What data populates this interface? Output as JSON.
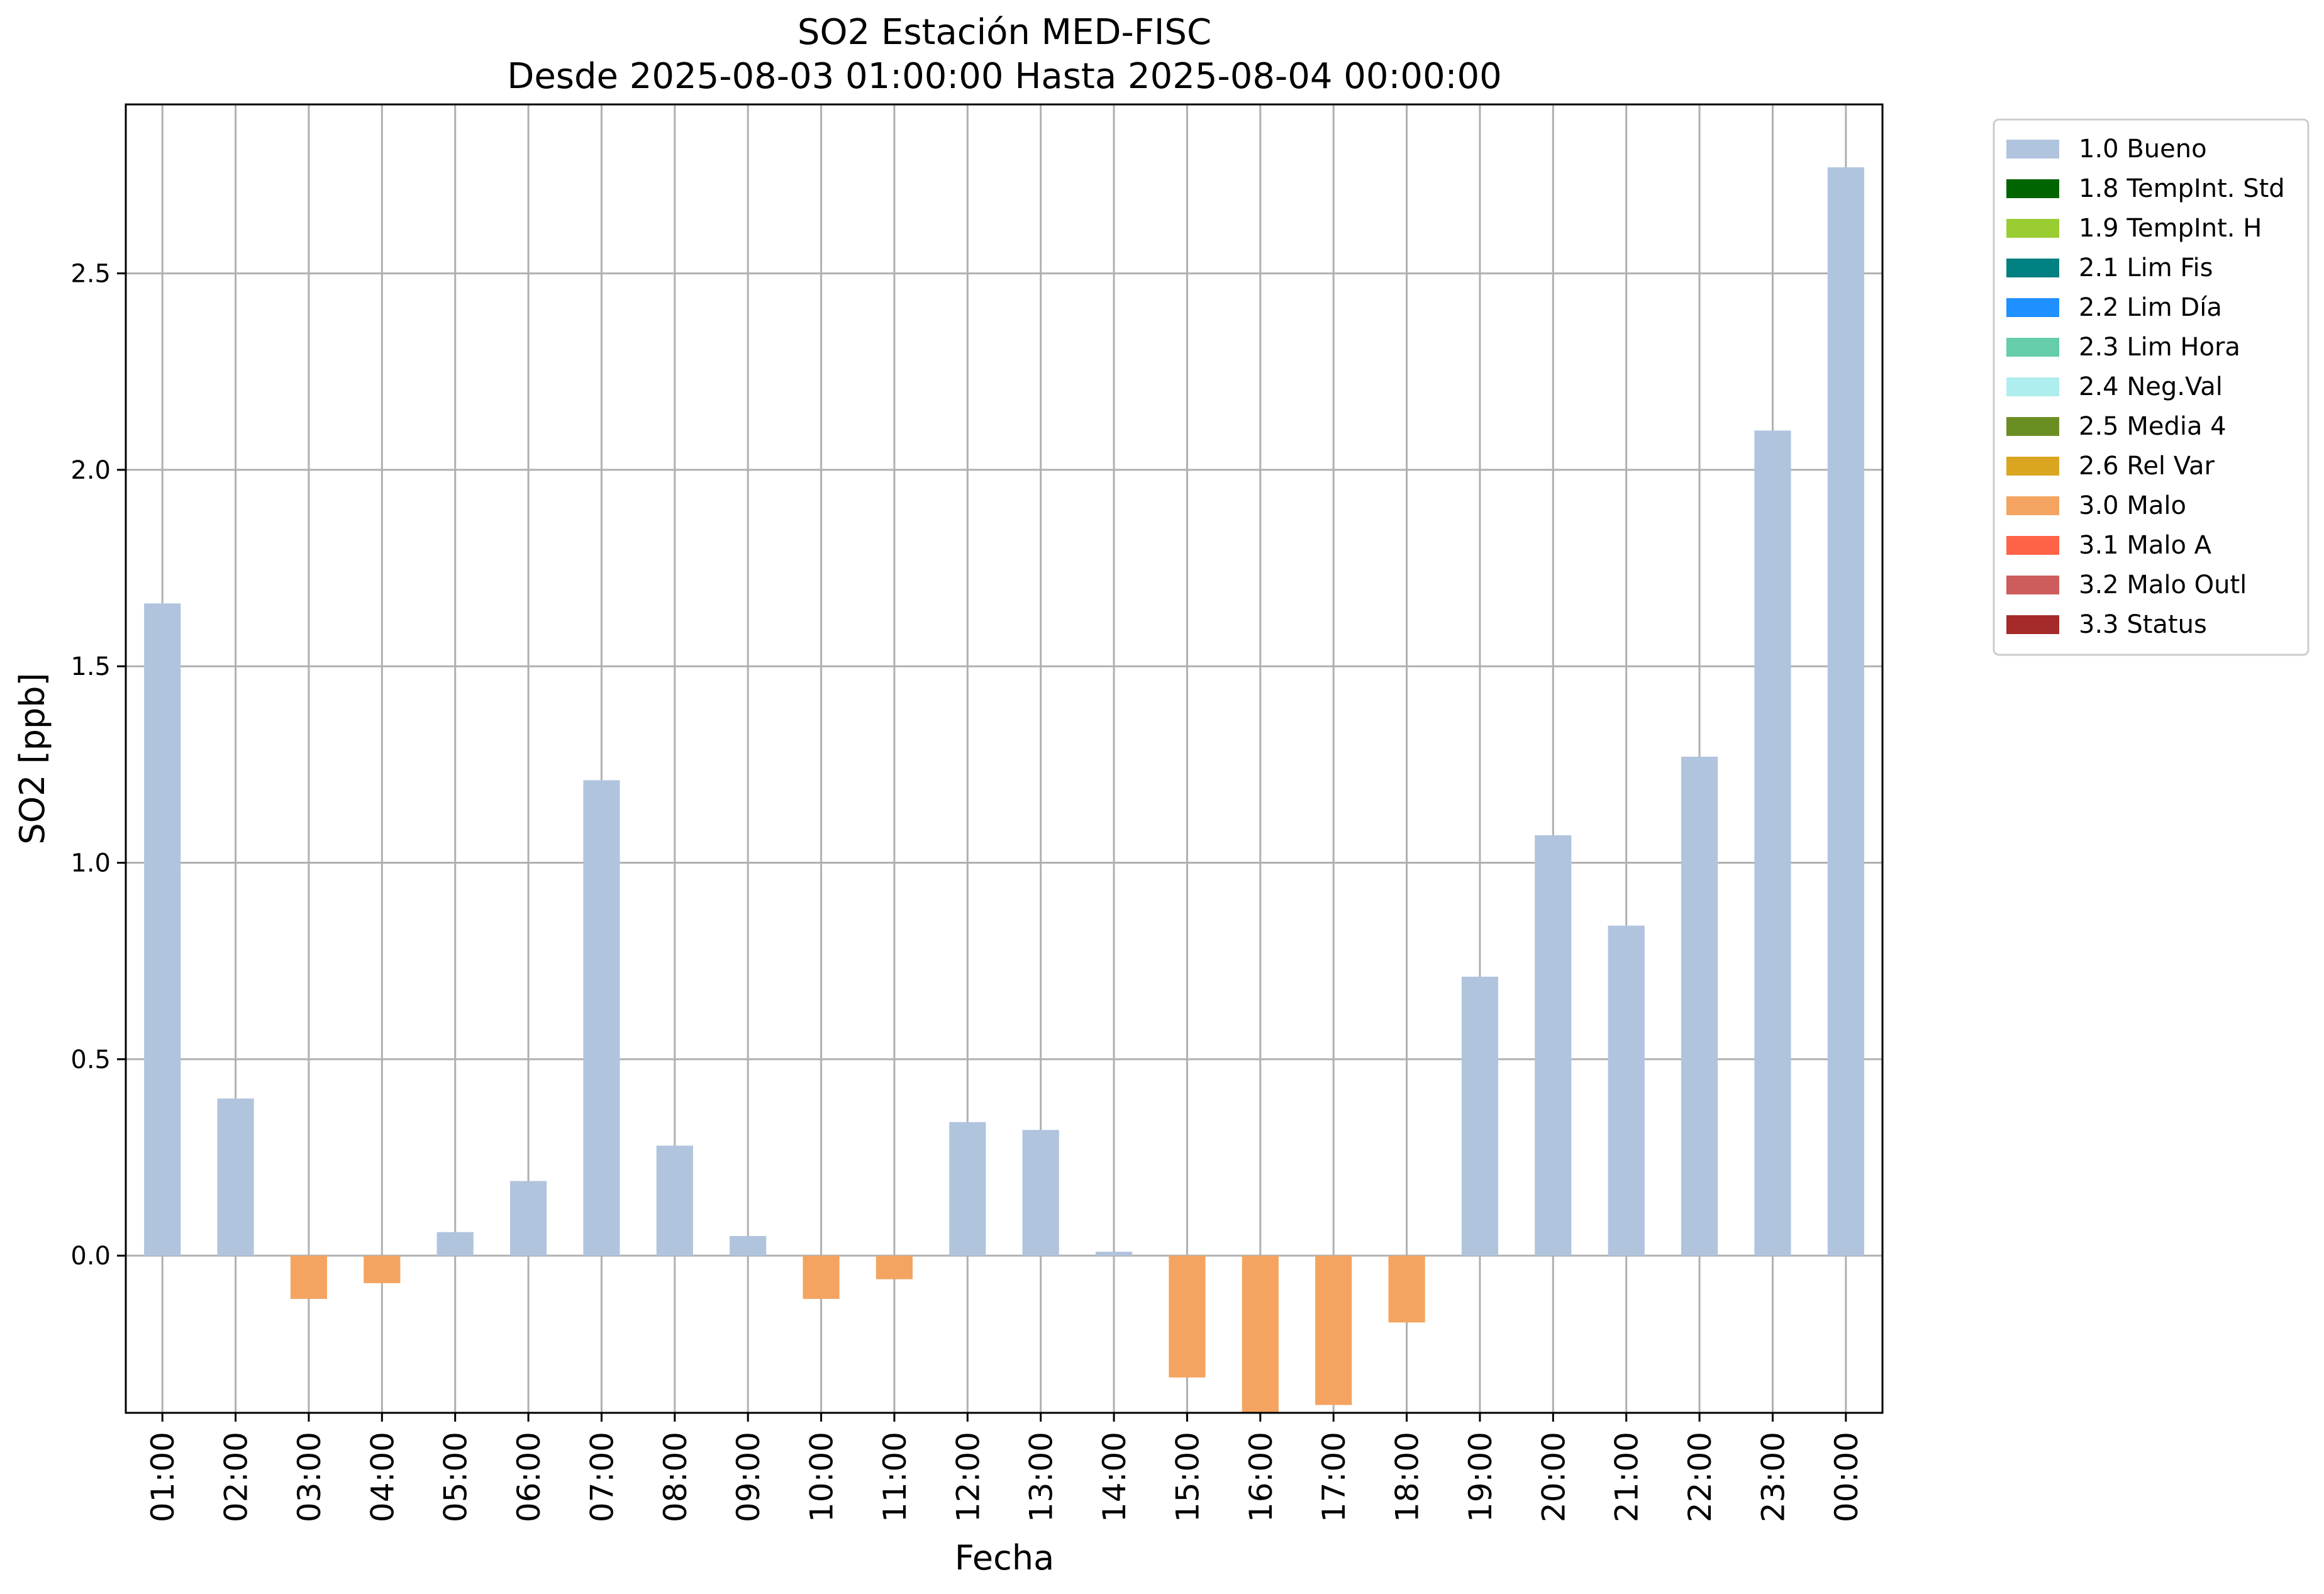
{
  "chart_data": {
    "type": "bar",
    "title": "SO2 Estación MED-FISC",
    "subtitle": "Desde 2025-08-03 01:00:00 Hasta 2025-08-04 00:00:00",
    "xlabel": "Fecha",
    "ylabel": "SO2 [ppb]",
    "ylim": [
      -0.4,
      2.93
    ],
    "yticks": [
      "0.0",
      "0.5",
      "1.0",
      "1.5",
      "2.0",
      "2.5"
    ],
    "grid": true,
    "legend_position": "outside-top-right",
    "categories": [
      "01:00",
      "02:00",
      "03:00",
      "04:00",
      "05:00",
      "06:00",
      "07:00",
      "08:00",
      "09:00",
      "10:00",
      "11:00",
      "12:00",
      "13:00",
      "14:00",
      "15:00",
      "16:00",
      "17:00",
      "18:00",
      "19:00",
      "20:00",
      "21:00",
      "22:00",
      "23:00",
      "00:00"
    ],
    "values": [
      1.66,
      0.4,
      -0.11,
      -0.07,
      0.06,
      0.19,
      1.21,
      0.28,
      0.05,
      -0.11,
      -0.06,
      0.34,
      0.32,
      0.01,
      -0.31,
      -0.4,
      -0.38,
      -0.17,
      0.71,
      1.07,
      0.84,
      1.27,
      2.1,
      2.77
    ],
    "flags": [
      "1.0 Bueno",
      "1.0 Bueno",
      "3.0 Malo",
      "3.0 Malo",
      "1.0 Bueno",
      "1.0 Bueno",
      "1.0 Bueno",
      "1.0 Bueno",
      "1.0 Bueno",
      "3.0 Malo",
      "3.0 Malo",
      "1.0 Bueno",
      "1.0 Bueno",
      "1.0 Bueno",
      "3.0 Malo",
      "3.0 Malo",
      "3.0 Malo",
      "3.0 Malo",
      "1.0 Bueno",
      "1.0 Bueno",
      "1.0 Bueno",
      "1.0 Bueno",
      "1.0 Bueno",
      "1.0 Bueno"
    ],
    "legend": [
      {
        "label": "1.0 Bueno",
        "color": "#b0c4de"
      },
      {
        "label": "1.8 TempInt. Std",
        "color": "#006400"
      },
      {
        "label": "1.9 TempInt. H",
        "color": "#9acd32"
      },
      {
        "label": "2.1 Lim Fis",
        "color": "#008080"
      },
      {
        "label": "2.2 Lim Día",
        "color": "#1e90ff"
      },
      {
        "label": "2.3 Lim Hora",
        "color": "#66cdaa"
      },
      {
        "label": "2.4 Neg.Val",
        "color": "#afeeee"
      },
      {
        "label": "2.5 Media 4",
        "color": "#6b8e23"
      },
      {
        "label": "2.6 Rel Var",
        "color": "#daa520"
      },
      {
        "label": "3.0 Malo",
        "color": "#f4a460"
      },
      {
        "label": "3.1 Malo A",
        "color": "#ff6347"
      },
      {
        "label": "3.2 Malo Outl",
        "color": "#cd5c5c"
      },
      {
        "label": "3.3 Status",
        "color": "#a52a2a"
      }
    ]
  }
}
